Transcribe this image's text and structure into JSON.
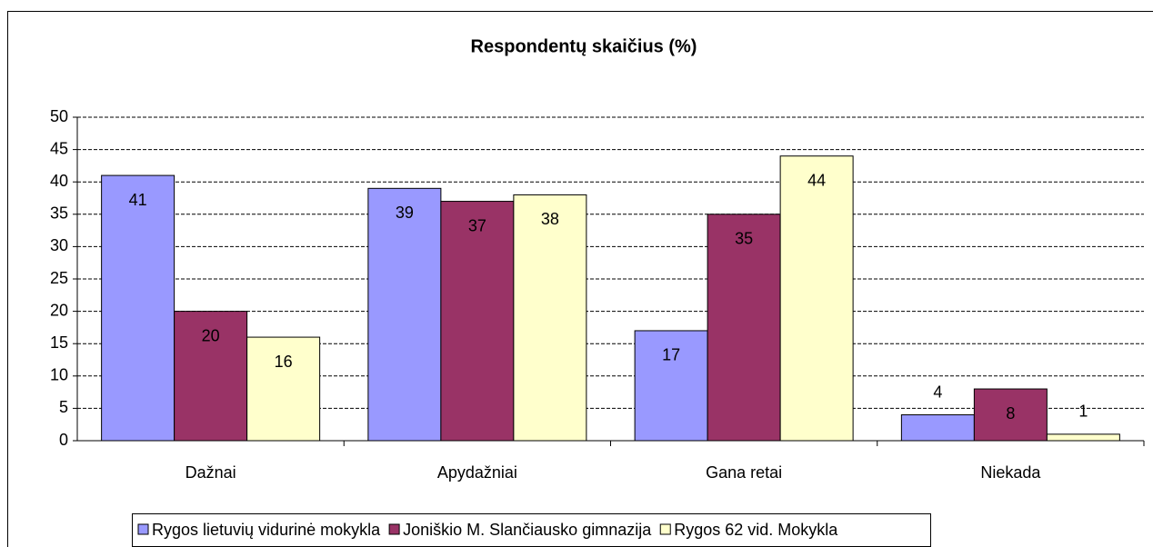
{
  "chart_data": {
    "type": "bar",
    "title": "Respondentų skaičius (%)",
    "categories": [
      "Dažnai",
      "Apydažniai",
      "Gana retai",
      "Niekada"
    ],
    "series": [
      {
        "name": "Rygos lietuvių vidurinė mokykla",
        "color": "#9999ff",
        "values": [
          41,
          39,
          17,
          4
        ]
      },
      {
        "name": "Joniškio M. Slančiausko gimnazija",
        "color": "#993366",
        "values": [
          20,
          37,
          35,
          8
        ]
      },
      {
        "name": "Rygos 62 vid. Mokykla",
        "color": "#ffffcc",
        "values": [
          16,
          38,
          44,
          1
        ]
      }
    ],
    "ylim": [
      0,
      50
    ],
    "yticks": [
      0,
      5,
      10,
      15,
      20,
      25,
      30,
      35,
      40,
      45,
      50
    ],
    "grid": true,
    "legend": "bottom"
  }
}
